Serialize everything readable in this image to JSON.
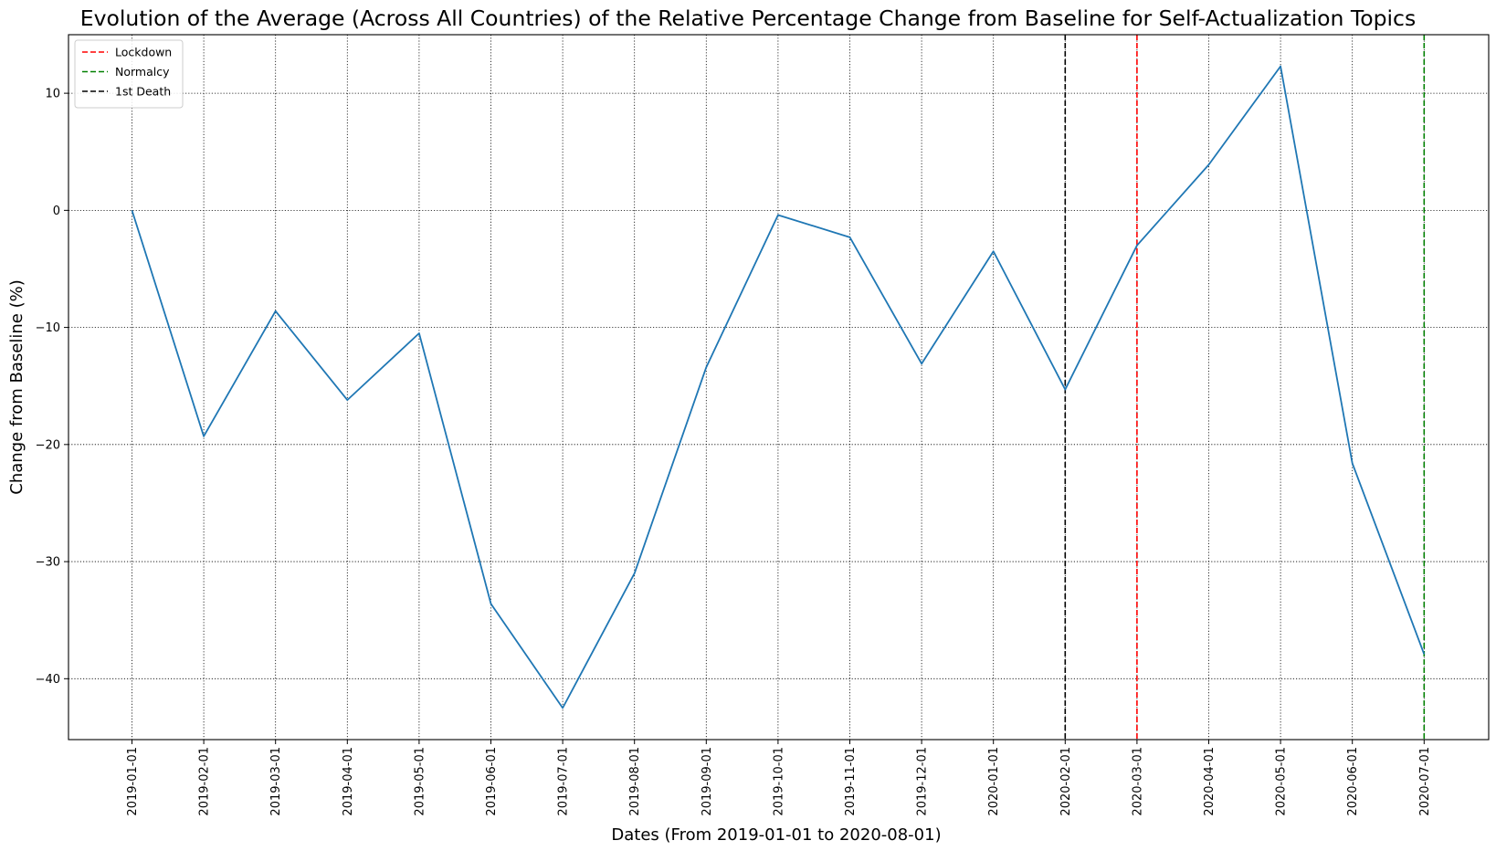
{
  "chart_data": {
    "type": "line",
    "title": "Evolution of the Average (Across All Countries) of the Relative Percentage Change from Baseline for Self-Actualization Topics",
    "xlabel": "Dates (From 2019-01-01 to 2020-08-01)",
    "ylabel": "Change from Baseline (%)",
    "ylim": [
      -45.2,
      15.0
    ],
    "yticks": [
      10,
      0,
      -10,
      -20,
      -30,
      -40
    ],
    "ytick_labels": [
      "10",
      "0",
      "−10",
      "−20",
      "−30",
      "−40"
    ],
    "x": [
      "2019-01-01",
      "2019-02-01",
      "2019-03-01",
      "2019-04-01",
      "2019-05-01",
      "2019-06-01",
      "2019-07-01",
      "2019-08-01",
      "2019-09-01",
      "2019-10-01",
      "2019-11-01",
      "2019-12-01",
      "2020-01-01",
      "2020-02-01",
      "2020-03-01",
      "2020-04-01",
      "2020-05-01",
      "2020-06-01",
      "2020-07-01"
    ],
    "series": [
      {
        "values": [
          0.0,
          -19.3,
          -8.6,
          -16.2,
          -10.5,
          -33.6,
          -42.5,
          -31.0,
          -13.4,
          -0.4,
          -2.3,
          -13.1,
          -3.5,
          -15.3,
          -3.0,
          3.9,
          12.3,
          -21.6,
          -37.9
        ],
        "color": "#1f77b4"
      }
    ],
    "vlines": [
      {
        "name": "Lockdown",
        "x": "2020-03-01",
        "color": "#ff0000"
      },
      {
        "name": "Normalcy",
        "x": "2020-07-01",
        "color": "#008000"
      },
      {
        "name": "1st Death",
        "x": "2020-02-01",
        "color": "#000000"
      }
    ],
    "legend_placement": "top-left",
    "grid": true
  }
}
